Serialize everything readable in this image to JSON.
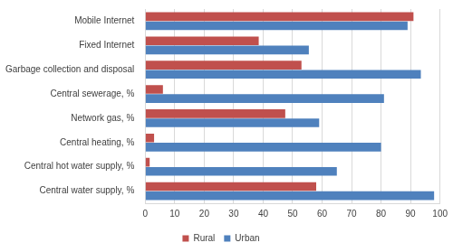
{
  "chart_data": {
    "type": "bar",
    "orientation": "horizontal",
    "categories": [
      "Mobile Internet",
      "Fixed Internet",
      "Garbage collection and disposal",
      "Central sewerage, %",
      "Network gas, %",
      "Central heating, %",
      "Central hot water supply, %",
      "Central water supply, %"
    ],
    "series": [
      {
        "name": "Rural",
        "color": "#c0504d",
        "values": [
          91,
          38.5,
          53,
          6,
          47.5,
          3,
          1.5,
          58
        ]
      },
      {
        "name": "Urban",
        "color": "#4f81bd",
        "values": [
          89,
          55.5,
          93.5,
          81,
          59,
          80,
          65,
          98
        ]
      }
    ],
    "xlim": [
      0,
      100
    ],
    "xticks": [
      0,
      10,
      20,
      30,
      40,
      50,
      60,
      70,
      80,
      90,
      100
    ],
    "grid": true,
    "legend": "bottom"
  }
}
